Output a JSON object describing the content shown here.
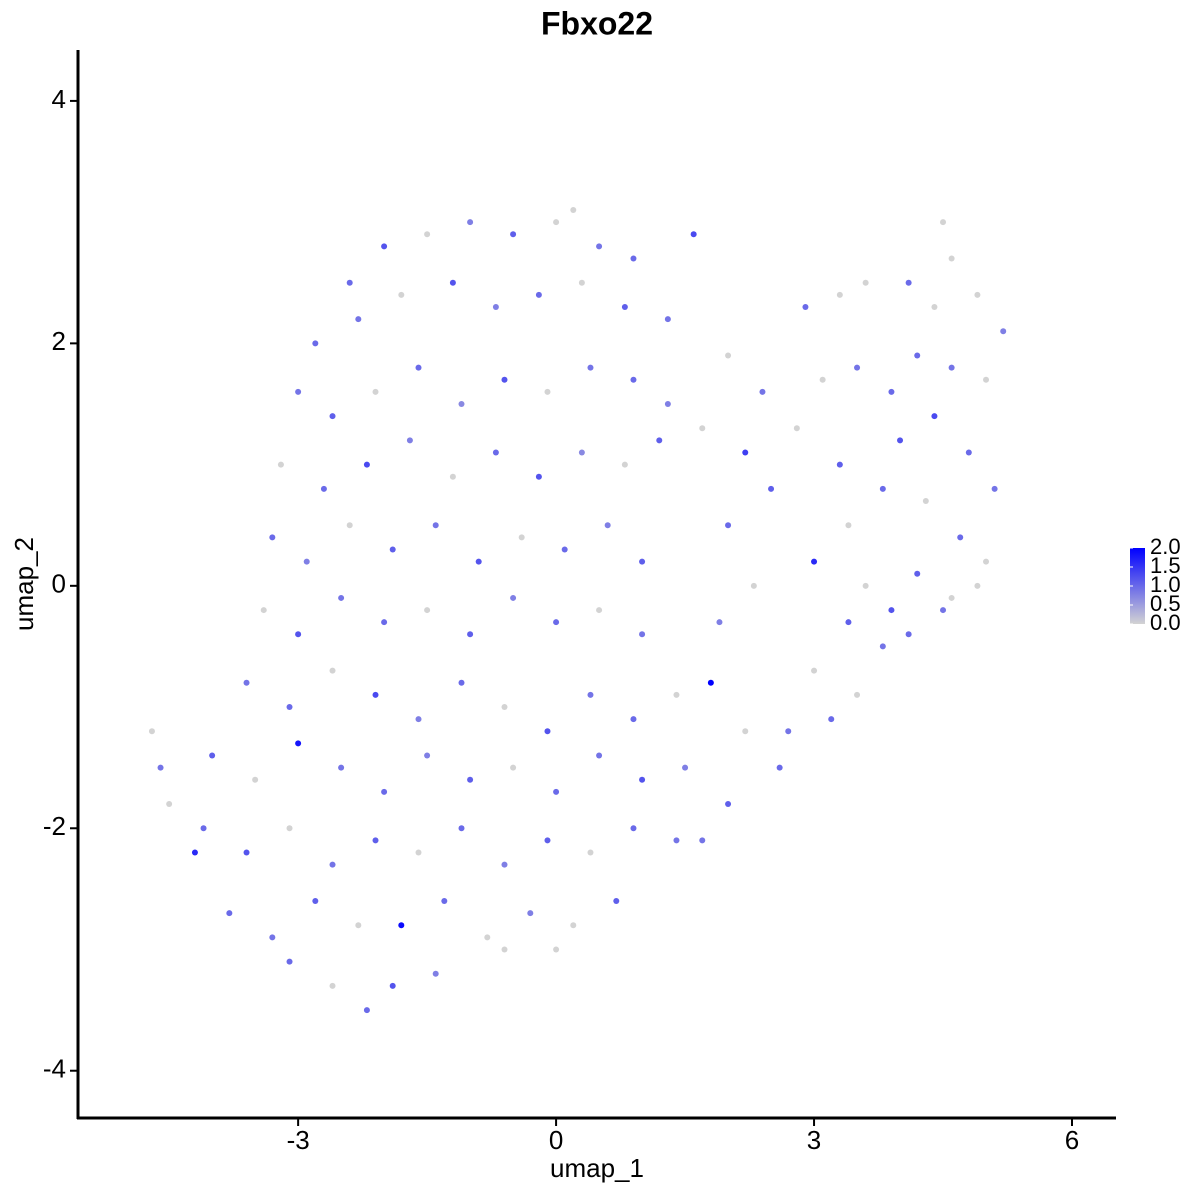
{
  "chart_data": {
    "type": "scatter",
    "title": "Fbxo22",
    "x_label": "umap_1",
    "y_label": "umap_2",
    "xlim": [
      -5.56,
      6.5
    ],
    "ylim": [
      -4.39,
      4.42
    ],
    "xticks": [
      -3,
      0,
      3,
      6
    ],
    "yticks": [
      -4,
      -2,
      0,
      2,
      4
    ],
    "low_color": "#d3d3d3",
    "high_color": "#0000ff",
    "color_lim": [
      0,
      2
    ],
    "color_ticks": [
      {
        "value": 2,
        "label": "2.0"
      },
      {
        "value": 1.5,
        "label": "1.5"
      },
      {
        "value": 1,
        "label": "1.0"
      },
      {
        "value": 0.5,
        "label": "0.5"
      },
      {
        "value": 0,
        "label": "0.0"
      }
    ],
    "points": [
      [
        -2.4,
        2.5,
        1.0
      ],
      [
        -2.0,
        2.8,
        1.2
      ],
      [
        -1.5,
        2.9,
        0
      ],
      [
        -1.0,
        3.0,
        0.8
      ],
      [
        -0.5,
        2.9,
        1.1
      ],
      [
        0.0,
        3.0,
        0
      ],
      [
        0.2,
        3.1,
        0
      ],
      [
        0.5,
        2.8,
        0.9
      ],
      [
        0.9,
        2.7,
        1.0
      ],
      [
        1.6,
        2.9,
        1.3
      ],
      [
        -2.8,
        2.0,
        1.0
      ],
      [
        -2.3,
        2.2,
        0.9
      ],
      [
        -1.8,
        2.4,
        0
      ],
      [
        -1.2,
        2.5,
        1.2
      ],
      [
        -0.7,
        2.3,
        0.8
      ],
      [
        -0.2,
        2.4,
        1.0
      ],
      [
        0.3,
        2.5,
        0
      ],
      [
        0.8,
        2.3,
        1.1
      ],
      [
        1.3,
        2.2,
        0.9
      ],
      [
        -3.0,
        1.6,
        0.9
      ],
      [
        -2.6,
        1.4,
        1.1
      ],
      [
        -2.1,
        1.6,
        0
      ],
      [
        -1.6,
        1.8,
        1.0
      ],
      [
        -1.1,
        1.5,
        0.7
      ],
      [
        -0.6,
        1.7,
        1.2
      ],
      [
        -0.1,
        1.6,
        0
      ],
      [
        0.4,
        1.8,
        0.9
      ],
      [
        0.9,
        1.7,
        1.0
      ],
      [
        1.3,
        1.5,
        0.8
      ],
      [
        -3.2,
        1.0,
        0
      ],
      [
        -2.7,
        0.8,
        1.0
      ],
      [
        -2.2,
        1.0,
        1.3
      ],
      [
        -1.7,
        1.2,
        0.8
      ],
      [
        -1.2,
        0.9,
        0
      ],
      [
        -0.7,
        1.1,
        1.0
      ],
      [
        -0.2,
        0.9,
        1.2
      ],
      [
        0.3,
        1.1,
        0.7
      ],
      [
        0.8,
        1.0,
        0
      ],
      [
        1.2,
        1.2,
        1.1
      ],
      [
        -3.3,
        0.4,
        1.0
      ],
      [
        -2.9,
        0.2,
        0.8
      ],
      [
        -2.4,
        0.5,
        0
      ],
      [
        -1.9,
        0.3,
        1.1
      ],
      [
        -1.4,
        0.5,
        0.9
      ],
      [
        -0.9,
        0.2,
        1.2
      ],
      [
        -0.4,
        0.4,
        0
      ],
      [
        0.1,
        0.3,
        1.0
      ],
      [
        0.6,
        0.5,
        0.8
      ],
      [
        1.0,
        0.2,
        1.1
      ],
      [
        -3.4,
        -0.2,
        0
      ],
      [
        -3.0,
        -0.4,
        1.2
      ],
      [
        -2.5,
        -0.1,
        0.9
      ],
      [
        -2.0,
        -0.3,
        1.0
      ],
      [
        -1.5,
        -0.2,
        0
      ],
      [
        -1.0,
        -0.4,
        1.1
      ],
      [
        -0.5,
        -0.1,
        0.8
      ],
      [
        0.0,
        -0.3,
        1.0
      ],
      [
        0.5,
        -0.2,
        0
      ],
      [
        1.0,
        -0.4,
        0.9
      ],
      [
        -3.6,
        -0.8,
        0.9
      ],
      [
        -3.1,
        -1.0,
        1.0
      ],
      [
        -2.6,
        -0.7,
        0
      ],
      [
        -2.1,
        -0.9,
        1.3
      ],
      [
        -1.6,
        -1.1,
        0.8
      ],
      [
        -1.1,
        -0.8,
        1.0
      ],
      [
        -0.6,
        -1.0,
        0
      ],
      [
        -0.1,
        -1.2,
        1.2
      ],
      [
        0.4,
        -0.9,
        0.9
      ],
      [
        0.9,
        -1.1,
        1.0
      ],
      [
        1.4,
        -0.9,
        0
      ],
      [
        -4.0,
        -1.4,
        1.1
      ],
      [
        -3.5,
        -1.6,
        0
      ],
      [
        -3.0,
        -1.3,
        1.8
      ],
      [
        -2.5,
        -1.5,
        0.9
      ],
      [
        -2.0,
        -1.7,
        1.0
      ],
      [
        -1.5,
        -1.4,
        0.8
      ],
      [
        -1.0,
        -1.6,
        1.1
      ],
      [
        -0.5,
        -1.5,
        0
      ],
      [
        0.0,
        -1.7,
        1.0
      ],
      [
        0.5,
        -1.4,
        0.9
      ],
      [
        1.0,
        -1.6,
        1.2
      ],
      [
        1.5,
        -1.5,
        0.8
      ],
      [
        -4.1,
        -2.0,
        1.0
      ],
      [
        -3.6,
        -2.2,
        1.2
      ],
      [
        -3.1,
        -2.0,
        0
      ],
      [
        -2.6,
        -2.3,
        0.9
      ],
      [
        -2.1,
        -2.1,
        1.1
      ],
      [
        -1.6,
        -2.2,
        0
      ],
      [
        -1.1,
        -2.0,
        1.0
      ],
      [
        -0.6,
        -2.3,
        0.8
      ],
      [
        -0.1,
        -2.1,
        1.1
      ],
      [
        0.4,
        -2.2,
        0
      ],
      [
        0.9,
        -2.0,
        1.0
      ],
      [
        1.4,
        -2.1,
        0.9
      ],
      [
        -3.8,
        -2.7,
        1.0
      ],
      [
        -3.3,
        -2.9,
        0.9
      ],
      [
        -2.8,
        -2.6,
        1.1
      ],
      [
        -2.3,
        -2.8,
        0
      ],
      [
        -1.8,
        -2.8,
        1.9
      ],
      [
        -1.3,
        -2.6,
        1.0
      ],
      [
        -0.8,
        -2.9,
        0
      ],
      [
        -0.3,
        -2.7,
        0.8
      ],
      [
        0.2,
        -2.8,
        0
      ],
      [
        0.7,
        -2.6,
        1.1
      ],
      [
        -3.1,
        -3.1,
        1.0
      ],
      [
        -2.6,
        -3.3,
        0
      ],
      [
        -2.2,
        -3.5,
        1.0
      ],
      [
        -1.9,
        -3.3,
        1.2
      ],
      [
        -1.4,
        -3.2,
        0.8
      ],
      [
        -0.6,
        -3.0,
        0
      ],
      [
        0.0,
        -3.0,
        0
      ],
      [
        -4.7,
        -1.2,
        0
      ],
      [
        -4.6,
        -1.5,
        0.9
      ],
      [
        -4.5,
        -1.8,
        0
      ],
      [
        -4.2,
        -2.2,
        1.6
      ],
      [
        1.8,
        -0.8,
        2.0
      ],
      [
        2.2,
        -1.2,
        0
      ],
      [
        2.6,
        -1.5,
        1.0
      ],
      [
        2.0,
        -1.8,
        1.1
      ],
      [
        1.7,
        -2.1,
        0.9
      ],
      [
        1.9,
        -0.3,
        0.8
      ],
      [
        2.3,
        0.0,
        0
      ],
      [
        2.0,
        0.5,
        1.0
      ],
      [
        2.5,
        0.8,
        1.1
      ],
      [
        2.2,
        1.1,
        1.4
      ],
      [
        1.7,
        1.3,
        0
      ],
      [
        2.0,
        1.9,
        0
      ],
      [
        2.4,
        1.6,
        0.9
      ],
      [
        2.8,
        1.3,
        0
      ],
      [
        2.9,
        2.3,
        1.0
      ],
      [
        2.7,
        -1.2,
        0.9
      ],
      [
        3.2,
        -1.1,
        1.0
      ],
      [
        3.5,
        -0.9,
        0
      ],
      [
        3.0,
        -0.7,
        0
      ],
      [
        3.4,
        -0.3,
        1.1
      ],
      [
        3.8,
        -0.5,
        0.9
      ],
      [
        3.6,
        0.0,
        0
      ],
      [
        3.0,
        0.2,
        1.6
      ],
      [
        3.4,
        0.5,
        0
      ],
      [
        3.8,
        0.8,
        1.0
      ],
      [
        3.3,
        1.0,
        1.1
      ],
      [
        3.1,
        1.7,
        0
      ],
      [
        3.5,
        1.8,
        0.9
      ],
      [
        3.9,
        1.6,
        1.0
      ],
      [
        3.3,
        2.4,
        0
      ],
      [
        3.6,
        2.5,
        0
      ],
      [
        4.1,
        2.5,
        1.0
      ],
      [
        4.4,
        2.3,
        0
      ],
      [
        4.6,
        2.7,
        0
      ],
      [
        4.5,
        3.0,
        0
      ],
      [
        4.9,
        2.4,
        0
      ],
      [
        5.2,
        2.1,
        0.8
      ],
      [
        4.2,
        1.9,
        1.0
      ],
      [
        4.6,
        1.8,
        0.9
      ],
      [
        5.0,
        1.7,
        0
      ],
      [
        4.0,
        1.2,
        1.2
      ],
      [
        4.4,
        1.4,
        1.3
      ],
      [
        4.8,
        1.1,
        1.0
      ],
      [
        5.1,
        0.8,
        0.9
      ],
      [
        4.3,
        0.7,
        0
      ],
      [
        4.7,
        0.4,
        1.0
      ],
      [
        5.0,
        0.2,
        0
      ],
      [
        4.2,
        0.1,
        1.1
      ],
      [
        4.5,
        -0.2,
        0.9
      ],
      [
        4.1,
        -0.4,
        1.0
      ],
      [
        4.6,
        -0.1,
        0
      ],
      [
        3.9,
        -0.2,
        1.2
      ],
      [
        4.9,
        0.0,
        0
      ]
    ]
  }
}
